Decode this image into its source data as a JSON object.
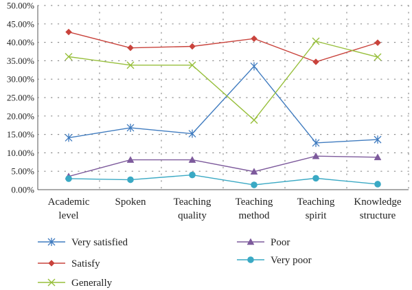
{
  "chart_data": {
    "type": "line",
    "categories": [
      [
        "Academic",
        "level"
      ],
      [
        "Spoken"
      ],
      [
        "Teaching",
        "quality"
      ],
      [
        "Teaching",
        "method"
      ],
      [
        "Teaching",
        "spirit"
      ],
      [
        "Knowledge",
        "structure"
      ]
    ],
    "y_ticks": [
      "0.00%",
      "5.00%",
      "10.00%",
      "15.00%",
      "20.00%",
      "25.00%",
      "30.00%",
      "35.00%",
      "40.00%",
      "45.00%",
      "50.00%"
    ],
    "ylim": [
      0,
      50
    ],
    "grid": "dotted",
    "legend_position": "bottom",
    "series": [
      {
        "name": "Very satisfied",
        "color": "#3f7bbf",
        "marker": "asterisk",
        "values": [
          14.1,
          16.8,
          15.2,
          33.5,
          12.7,
          13.6
        ]
      },
      {
        "name": "Satisfy",
        "color": "#c9433c",
        "marker": "diamond",
        "values": [
          42.8,
          38.5,
          38.9,
          41.0,
          34.7,
          39.9
        ]
      },
      {
        "name": "Generally",
        "color": "#97bf3b",
        "marker": "x",
        "values": [
          36.1,
          33.8,
          33.8,
          18.9,
          40.3,
          36.0
        ]
      },
      {
        "name": "Poor",
        "color": "#7d5a9c",
        "marker": "triangle",
        "values": [
          3.6,
          8.1,
          8.1,
          4.9,
          9.1,
          8.8
        ]
      },
      {
        "name": "Very poor",
        "color": "#3aa9c4",
        "marker": "circle",
        "values": [
          3.0,
          2.7,
          4.0,
          1.3,
          3.1,
          1.5
        ]
      }
    ]
  }
}
